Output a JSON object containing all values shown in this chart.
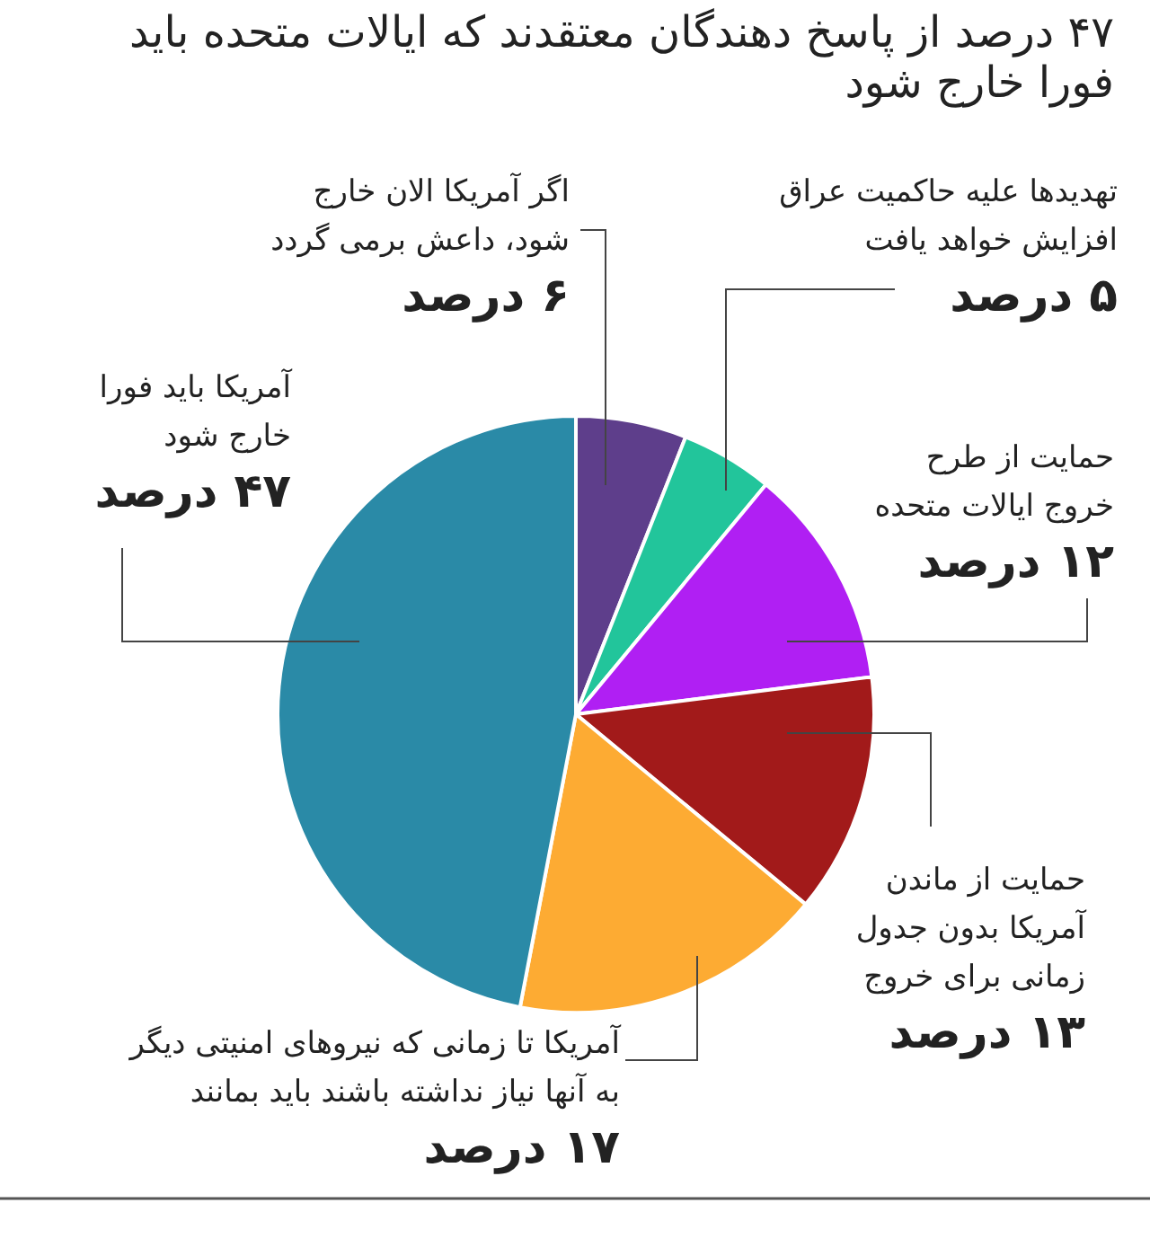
{
  "chart_data": {
    "type": "pie",
    "title": "۴۷ درصد از پاسخ دهندگان معتقدند که ایالات متحده باید فورا خارج شود",
    "categories": [
      "اگر آمریکا الان خارج شود، داعش برمی گردد",
      "تهدیدها علیه حاکمیت عراق افزایش خواهد یافت",
      "حمایت از طرح خروج ایالات متحده",
      "حمایت از ماندن آمریکا بدون جدول زمانی برای خروج",
      "آمریکا تا زمانی که نیروهای امنیتی دیگر به آنها نیاز نداشته باشند باید بمانند",
      "آمریکا باید فورا خارج شود"
    ],
    "values": [
      6,
      5,
      12,
      13,
      17,
      47
    ],
    "value_labels": [
      "۶ درصد",
      "۵ درصد",
      "۱۲ درصد",
      "۱۳ درصد",
      "۱۷ درصد",
      "۴۷ درصد"
    ],
    "colors": [
      "#5e3e8b",
      "#22c59b",
      "#b01ff3",
      "#a21a1a",
      "#fdab33",
      "#2a8aa7"
    ]
  }
}
